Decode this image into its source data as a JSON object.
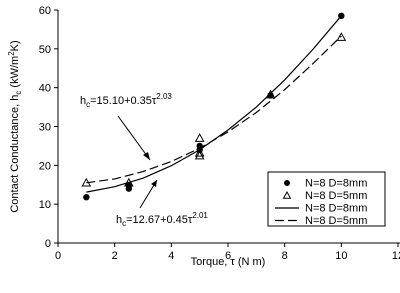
{
  "chart_data": {
    "type": "scatter",
    "xlabel": "Torque, τ (N m)",
    "ylabel": {
      "main": "Contact Conductance, h",
      "sub": "c",
      "unit": " (kW/m",
      "sup": "2",
      "end": "K)"
    },
    "xlim": [
      0,
      12
    ],
    "ylim": [
      0,
      60
    ],
    "xticks": [
      0,
      2,
      4,
      6,
      8,
      10,
      12
    ],
    "yticks": [
      0,
      10,
      20,
      30,
      40,
      50,
      60
    ],
    "legend": "lower right",
    "series": [
      {
        "name": "N=8 D=8mm",
        "kind": "circle",
        "color": "#000000",
        "x": [
          1,
          2.5,
          2.5,
          5,
          5,
          7.5,
          10
        ],
        "values": [
          11.8,
          14,
          14.8,
          24,
          25,
          38,
          58.5
        ]
      },
      {
        "name": "N=8 D=5mm",
        "kind": "triangle",
        "color": "#000000",
        "x": [
          1,
          2.5,
          5,
          5,
          5,
          7.5,
          10
        ],
        "values": [
          15.5,
          15.5,
          27,
          23.2,
          22.5,
          38.2,
          53
        ]
      },
      {
        "name": "N=8 D=8mm",
        "kind": "solid",
        "color": "#000000",
        "x": [
          1,
          2,
          3,
          4,
          5,
          6,
          7,
          8,
          9,
          10
        ],
        "values": [
          13.1,
          14.5,
          16.7,
          19.9,
          24.0,
          29.1,
          35.0,
          42.0,
          49.9,
          58.5
        ]
      },
      {
        "name": "N=8 D=5mm",
        "kind": "dashed",
        "color": "#000000",
        "x": [
          1,
          2,
          3,
          4,
          5,
          6,
          7,
          8,
          9,
          10
        ],
        "values": [
          15.5,
          16.5,
          18.4,
          21.0,
          24.4,
          28.6,
          33.6,
          39.5,
          46.2,
          53.3
        ]
      }
    ],
    "annotations": [
      {
        "h": "h",
        "sub": "c",
        "main": "=15.10+0.35τ",
        "sup": "2.03"
      },
      {
        "h": "h",
        "sub": "c",
        "main": "=12.67+0.45τ",
        "sup": "2.01"
      }
    ]
  }
}
